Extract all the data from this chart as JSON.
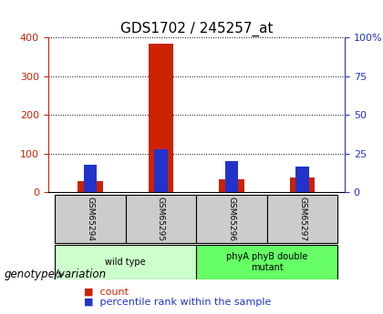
{
  "title": "GDS1702 / 245257_at",
  "samples": [
    "GSM65294",
    "GSM65295",
    "GSM65296",
    "GSM65297"
  ],
  "counts": [
    30,
    385,
    35,
    38
  ],
  "percentile_ranks": [
    18,
    28,
    20,
    17
  ],
  "ylim_left": [
    0,
    400
  ],
  "ylim_right": [
    0,
    100
  ],
  "yticks_left": [
    0,
    100,
    200,
    300,
    400
  ],
  "yticks_right": [
    0,
    25,
    50,
    75,
    100
  ],
  "yticklabels_right": [
    "0",
    "25",
    "50",
    "75",
    "100%"
  ],
  "groups": [
    {
      "label": "wild type",
      "samples": [
        0,
        1
      ],
      "color": "#ccffcc"
    },
    {
      "label": "phyA phyB double\nmutant",
      "samples": [
        2,
        3
      ],
      "color": "#66ff66"
    }
  ],
  "bar_width": 0.35,
  "count_color": "#cc2200",
  "percentile_color": "#2233cc",
  "grid_color": "#000000",
  "ax_bg": "#ffffff",
  "sample_box_color": "#cccccc",
  "legend_count_label": "count",
  "legend_pct_label": "percentile rank within the sample",
  "genotype_label": "genotype/variation",
  "title_fontsize": 11,
  "axis_label_fontsize": 9,
  "legend_fontsize": 8,
  "genotype_fontsize": 8.5
}
